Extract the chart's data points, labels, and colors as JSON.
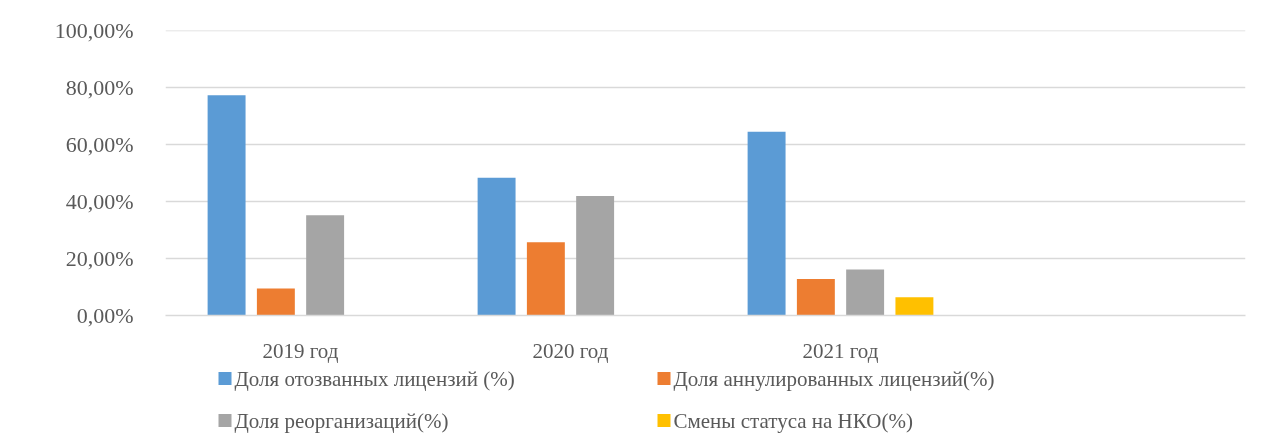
{
  "chart_data": {
    "type": "bar",
    "categories": [
      "2019 год",
      "2020 год",
      "2021 год",
      null
    ],
    "series": [
      {
        "name": "Доля отозванных лицензий (%)",
        "color": "#5b9bd5",
        "values": [
          77.3,
          48.3,
          64.5,
          null
        ]
      },
      {
        "name": "Доля аннулированных лицензий(%)",
        "color": "#ed7d31",
        "values": [
          9.5,
          25.7,
          12.8,
          null
        ]
      },
      {
        "name": "Доля реорганизаций(%)",
        "color": "#a5a5a5",
        "values": [
          35.2,
          41.9,
          16.1,
          null
        ]
      },
      {
        "name": "Смены статуса на НКО(%)",
        "color": "#ffc000",
        "values": [
          null,
          null,
          6.4,
          null
        ]
      }
    ],
    "ylim": [
      0,
      100
    ],
    "yticks": [
      {
        "value": 0,
        "label": "0,00%"
      },
      {
        "value": 20,
        "label": "20,00%"
      },
      {
        "value": 40,
        "label": "40,00%"
      },
      {
        "value": 60,
        "label": "60,00%"
      },
      {
        "value": 80,
        "label": "80,00%"
      },
      {
        "value": 100,
        "label": "100,00%"
      }
    ],
    "grid": "y",
    "legend": "bottom"
  }
}
